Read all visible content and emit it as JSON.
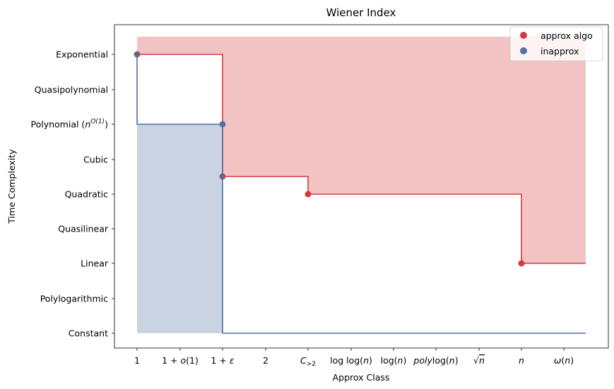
{
  "chart_data": {
    "type": "step",
    "title": "Wiener Index",
    "xlabel": "Approx Class",
    "ylabel": "Time Complexity",
    "x_categories": [
      "1",
      "1+o(1)",
      "1+ε",
      "2",
      "C>2",
      "loglog(n)",
      "log(n)",
      "polylog(n)",
      "√n",
      "n",
      "ω(n)"
    ],
    "y_categories": [
      "Constant",
      "Polylogarithmic",
      "Linear",
      "Quasilinear",
      "Quadratic",
      "Cubic",
      "Polynomial (n^O(1))",
      "Quasipolynomial",
      "Exponential"
    ],
    "series": [
      {
        "name": "approx algo",
        "color": "#d9393c",
        "fill_color": "#f3c3c4",
        "points": [
          {
            "x": "1",
            "y": "Exponential"
          },
          {
            "x": "1+ε",
            "y": "Cubic/Quadratic (between)"
          },
          {
            "x": "C>2",
            "y": "Quadratic"
          },
          {
            "x": "n",
            "y": "Linear"
          }
        ]
      },
      {
        "name": "inapprox",
        "color": "#5470a8",
        "fill_color": "#c9d3e2",
        "points": [
          {
            "x": "1",
            "y": "Exponential"
          },
          {
            "x": "1+ε",
            "y": "Polynomial (n^O(1))"
          }
        ]
      }
    ],
    "legend_position": "top-right",
    "grid": false
  }
}
